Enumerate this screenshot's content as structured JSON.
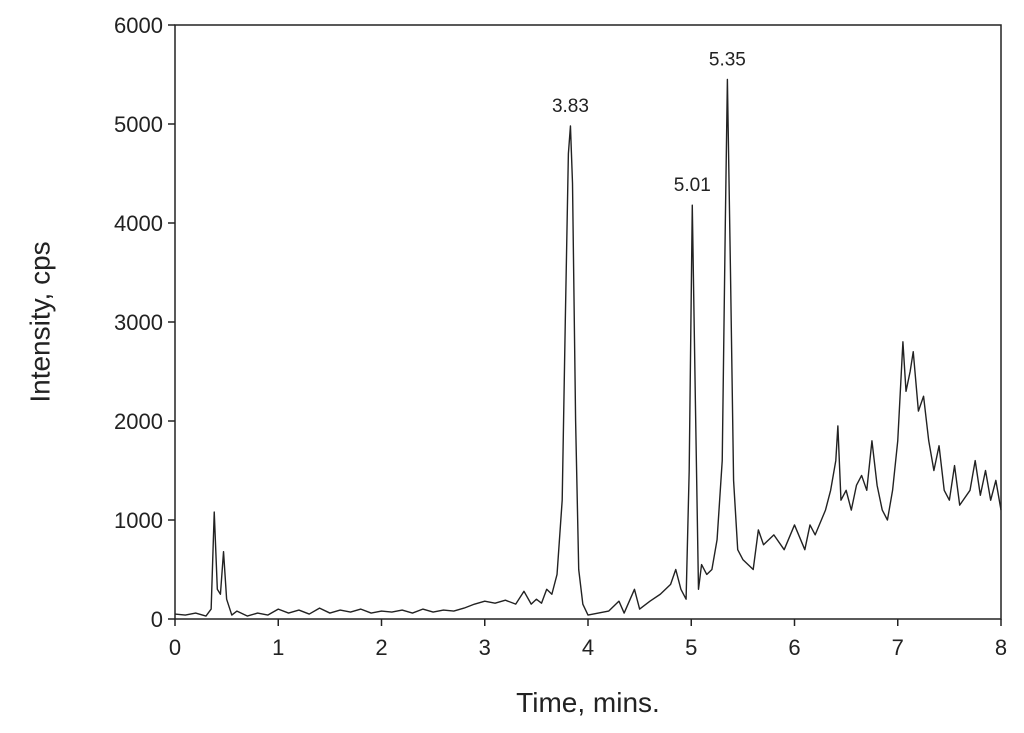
{
  "chart_data": {
    "type": "line",
    "x_label": "Time, mins.",
    "y_label": "Intensity, cps",
    "xlim": [
      0,
      8
    ],
    "ylim": [
      0,
      6000
    ],
    "xticks": [
      0,
      1,
      2,
      3,
      4,
      5,
      6,
      7,
      8
    ],
    "yticks": [
      0,
      1000,
      2000,
      3000,
      4000,
      5000,
      6000
    ],
    "x": [
      0,
      0.1,
      0.2,
      0.3,
      0.35,
      0.38,
      0.41,
      0.44,
      0.47,
      0.5,
      0.55,
      0.6,
      0.7,
      0.8,
      0.9,
      1.0,
      1.1,
      1.2,
      1.3,
      1.4,
      1.5,
      1.6,
      1.7,
      1.8,
      1.9,
      2.0,
      2.1,
      2.2,
      2.3,
      2.4,
      2.5,
      2.6,
      2.7,
      2.8,
      2.9,
      3.0,
      3.1,
      3.2,
      3.3,
      3.38,
      3.45,
      3.5,
      3.55,
      3.6,
      3.65,
      3.7,
      3.75,
      3.78,
      3.81,
      3.83,
      3.85,
      3.88,
      3.91,
      3.95,
      4.0,
      4.1,
      4.2,
      4.3,
      4.35,
      4.45,
      4.5,
      4.6,
      4.7,
      4.8,
      4.85,
      4.9,
      4.95,
      4.98,
      5.01,
      5.04,
      5.07,
      5.1,
      5.15,
      5.2,
      5.25,
      5.3,
      5.33,
      5.35,
      5.38,
      5.41,
      5.45,
      5.5,
      5.6,
      5.65,
      5.7,
      5.8,
      5.9,
      6.0,
      6.1,
      6.15,
      6.2,
      6.3,
      6.35,
      6.4,
      6.42,
      6.45,
      6.5,
      6.55,
      6.6,
      6.65,
      6.7,
      6.75,
      6.8,
      6.85,
      6.9,
      6.95,
      7.0,
      7.05,
      7.08,
      7.12,
      7.15,
      7.2,
      7.25,
      7.3,
      7.35,
      7.4,
      7.45,
      7.5,
      7.55,
      7.6,
      7.7,
      7.75,
      7.8,
      7.85,
      7.9,
      7.95,
      8.0
    ],
    "series": [
      {
        "color": "#222222",
        "values": [
          50,
          40,
          60,
          30,
          100,
          1080,
          300,
          250,
          680,
          200,
          40,
          80,
          30,
          60,
          40,
          100,
          60,
          90,
          50,
          110,
          60,
          90,
          70,
          100,
          60,
          80,
          70,
          90,
          60,
          100,
          70,
          90,
          80,
          110,
          150,
          180,
          160,
          190,
          150,
          280,
          150,
          200,
          160,
          300,
          250,
          450,
          1200,
          3000,
          4700,
          4980,
          4400,
          2000,
          500,
          150,
          40,
          60,
          80,
          180,
          60,
          300,
          100,
          180,
          250,
          350,
          500,
          300,
          200,
          1500,
          4180,
          2200,
          300,
          550,
          450,
          500,
          800,
          1600,
          4000,
          5450,
          3500,
          1400,
          700,
          600,
          500,
          900,
          750,
          850,
          700,
          950,
          700,
          950,
          850,
          1100,
          1300,
          1600,
          1950,
          1200,
          1300,
          1100,
          1350,
          1450,
          1300,
          1800,
          1350,
          1100,
          1000,
          1300,
          1800,
          2800,
          2300,
          2500,
          2700,
          2100,
          2250,
          1800,
          1500,
          1750,
          1300,
          1200,
          1550,
          1150,
          1300,
          1600,
          1250,
          1500,
          1200,
          1400,
          1100
        ]
      }
    ],
    "annotations": [
      {
        "text": "3.83",
        "x": 3.83,
        "y": 4980
      },
      {
        "text": "5.01",
        "x": 5.01,
        "y": 4180
      },
      {
        "text": "5.35",
        "x": 5.35,
        "y": 5450
      }
    ]
  }
}
